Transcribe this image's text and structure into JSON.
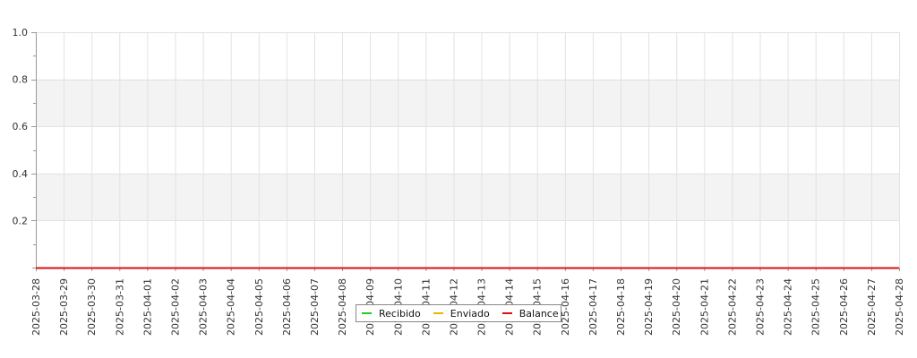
{
  "chart_data": {
    "type": "line",
    "title": "",
    "xlabel": "",
    "ylabel": "",
    "x": [
      "2025-03-28",
      "2025-03-29",
      "2025-03-30",
      "2025-03-31",
      "2025-04-01",
      "2025-04-02",
      "2025-04-03",
      "2025-04-04",
      "2025-04-05",
      "2025-04-06",
      "2025-04-07",
      "2025-04-08",
      "2025-04-09",
      "2025-04-10",
      "2025-04-11",
      "2025-04-12",
      "2025-04-13",
      "2025-04-14",
      "2025-04-15",
      "2025-04-16",
      "2025-04-17",
      "2025-04-18",
      "2025-04-19",
      "2025-04-20",
      "2025-04-21",
      "2025-04-22",
      "2025-04-23",
      "2025-04-24",
      "2025-04-25",
      "2025-04-26",
      "2025-04-27",
      "2025-04-28"
    ],
    "ylim": [
      0,
      1.0
    ],
    "yticks": [
      "0.2",
      "0.4",
      "0.6",
      "0.8",
      "1.0"
    ],
    "grid": true,
    "legend_position": "bottom-center",
    "series": [
      {
        "name": "Recibido",
        "color": "#22cc22",
        "values": [
          0,
          0,
          0,
          0,
          0,
          0,
          0,
          0,
          0,
          0,
          0,
          0,
          0,
          0,
          0,
          0,
          0,
          0,
          0,
          0,
          0,
          0,
          0,
          0,
          0,
          0,
          0,
          0,
          0,
          0,
          0,
          0
        ]
      },
      {
        "name": "Enviado",
        "color": "#e6b800",
        "values": [
          0,
          0,
          0,
          0,
          0,
          0,
          0,
          0,
          0,
          0,
          0,
          0,
          0,
          0,
          0,
          0,
          0,
          0,
          0,
          0,
          0,
          0,
          0,
          0,
          0,
          0,
          0,
          0,
          0,
          0,
          0,
          0
        ]
      },
      {
        "name": "Balance",
        "color": "#dd1111",
        "values": [
          0,
          0,
          0,
          0,
          0,
          0,
          0,
          0,
          0,
          0,
          0,
          0,
          0,
          0,
          0,
          0,
          0,
          0,
          0,
          0,
          0,
          0,
          0,
          0,
          0,
          0,
          0,
          0,
          0,
          0,
          0,
          0
        ]
      }
    ]
  }
}
